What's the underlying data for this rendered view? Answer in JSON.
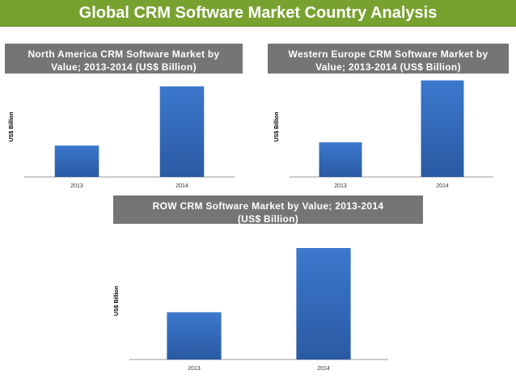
{
  "page": {
    "title": "Global CRM Software Market Country Analysis"
  },
  "chart_data": [
    {
      "type": "bar",
      "title_line1": "North America CRM Software Market by",
      "title_line2": "Value; 2013-2014 (US$ Billion)",
      "categories": [
        "2013",
        "2014"
      ],
      "values": [
        3.6,
        10.4
      ],
      "ylabel": "US$ Billion",
      "ylim": [
        0,
        11.5
      ],
      "colors": {
        "bar_top": "#3c78cd",
        "bar_bottom": "#2a5aa3"
      }
    },
    {
      "type": "bar",
      "title_line1": "Western Europe CRM Software Market by",
      "title_line2": "Value; 2013-2014 (US$ Billion)",
      "categories": [
        "2013",
        "2014"
      ],
      "values": [
        3.8,
        10.6
      ],
      "ylabel": "US$ Billion",
      "ylim": [
        0,
        11.0
      ],
      "colors": {
        "bar_top": "#3c78cd",
        "bar_bottom": "#2a5aa3"
      }
    },
    {
      "type": "bar",
      "title_line1": "ROW CRM Software Market by Value; 2013-2014",
      "title_line2": "(US$ Billion)",
      "categories": [
        "2013",
        "2014"
      ],
      "values": [
        4.2,
        9.9
      ],
      "ylabel": "US$ Billion",
      "ylim": [
        0,
        10.4
      ],
      "colors": {
        "bar_top": "#3c78cd",
        "bar_bottom": "#2a5aa3"
      }
    }
  ]
}
